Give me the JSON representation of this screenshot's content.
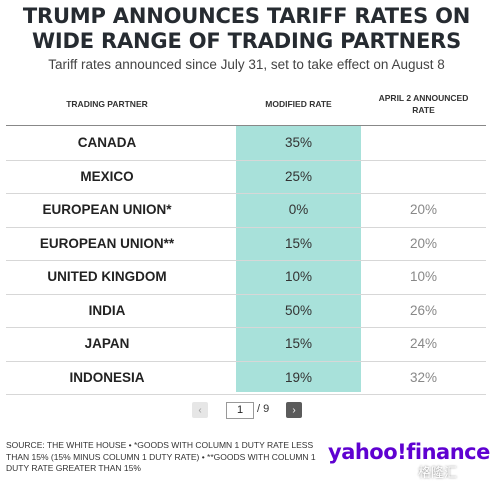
{
  "title_line1": "TRUMP ANNOUNCES TARIFF RATES ON",
  "title_line2": "WIDE RANGE OF TRADING PARTNERS",
  "subtitle": "Tariff rates announced since July 31, set to take effect on August 8",
  "headers": {
    "partner": "TRADING PARTNER",
    "modified": "MODIFIED RATE",
    "april_line1": "APRIL 2 ANNOUNCED",
    "april_line2": "RATE"
  },
  "rows": [
    {
      "partner": "CANADA",
      "modified": "35%",
      "april": ""
    },
    {
      "partner": "MEXICO",
      "modified": "25%",
      "april": ""
    },
    {
      "partner": "EUROPEAN UNION*",
      "modified": "0%",
      "april": "20%"
    },
    {
      "partner": "EUROPEAN UNION**",
      "modified": "15%",
      "april": "20%"
    },
    {
      "partner": "UNITED KINGDOM",
      "modified": "10%",
      "april": "10%"
    },
    {
      "partner": "INDIA",
      "modified": "50%",
      "april": "26%"
    },
    {
      "partner": "JAPAN",
      "modified": "15%",
      "april": "24%"
    },
    {
      "partner": "INDONESIA",
      "modified": "19%",
      "april": "32%"
    }
  ],
  "pagination": {
    "prev": "‹",
    "current": "1",
    "total": "/ 9",
    "next": "›"
  },
  "source": "SOURCE: THE WHITE HOUSE • *GOODS WITH COLUMN 1 DUTY RATE LESS THAN 15% (15% MINUS COLUMN 1 DUTY RATE) • **GOODS WITH COLUMN 1 DUTY RATE GREATER THAN 15%",
  "logo": "yahoo!finance",
  "watermark": "格隆汇",
  "colors": {
    "highlight": "#a8e1da",
    "logo": "#5f01d1"
  }
}
